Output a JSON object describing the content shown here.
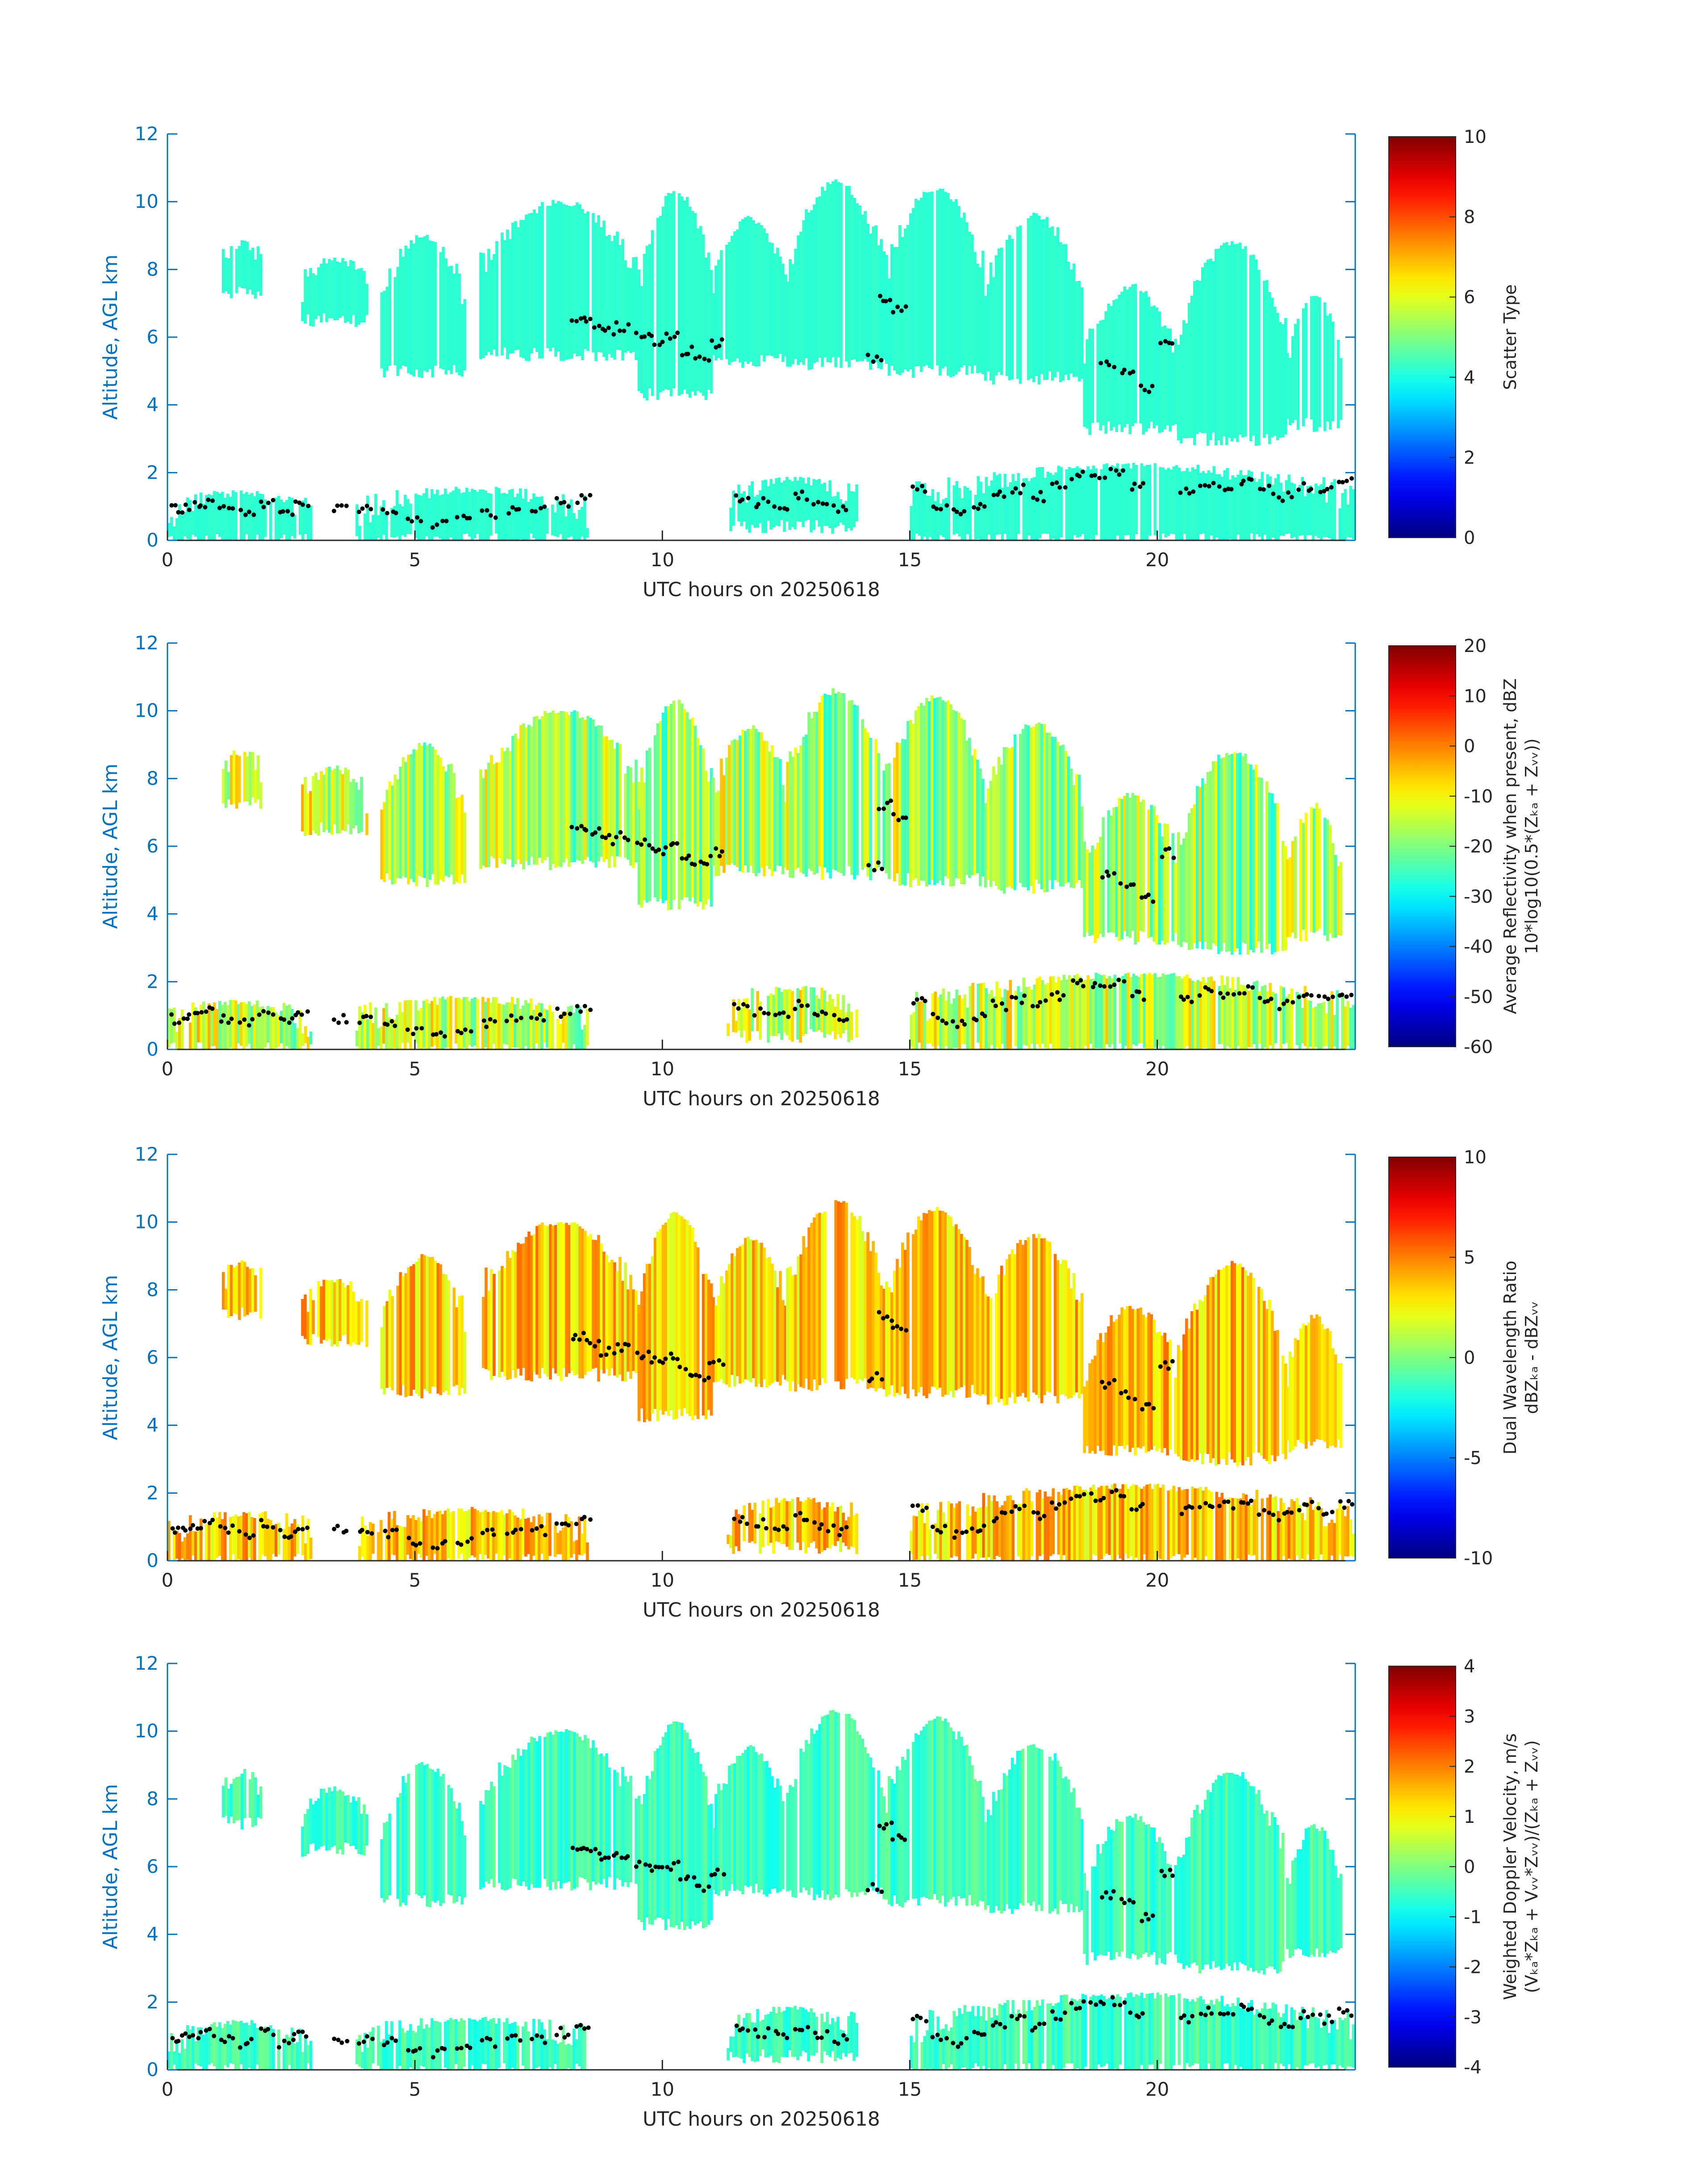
{
  "figure": {
    "colormap": "jet",
    "axis_color": "#0072BD",
    "marker_color": "#000000"
  },
  "chart_data": [
    {
      "type": "heatmap",
      "title": "",
      "xlabel": "UTC hours on 20250618",
      "ylabel": "Altitude, AGL km",
      "xlim": [
        0,
        24
      ],
      "ylim": [
        0,
        12
      ],
      "xticks": [
        0,
        5,
        10,
        15,
        20
      ],
      "yticks": [
        0,
        2,
        4,
        6,
        8,
        10,
        12
      ],
      "colorbar": {
        "label_lines": [
          "Scatter Type"
        ],
        "clim": [
          0,
          10
        ],
        "ticks": [
          0,
          2,
          4,
          6,
          8,
          10
        ],
        "tick_labels": [
          "0",
          "2",
          "4",
          "6",
          "8",
          "10"
        ]
      },
      "field": {
        "dominant_value": 4.2,
        "spread": 0.05
      }
    },
    {
      "type": "heatmap",
      "title": "",
      "xlabel": "UTC hours on 20250618",
      "ylabel": "Altitude, AGL km",
      "xlim": [
        0,
        24
      ],
      "ylim": [
        0,
        12
      ],
      "xticks": [
        0,
        5,
        10,
        15,
        20
      ],
      "yticks": [
        0,
        2,
        4,
        6,
        8,
        10,
        12
      ],
      "colorbar": {
        "label_lines": [
          "Average Reflectivity when present, dBZ",
          "10*log10(0.5*(Zₖₐ + Zᵥᵥ))"
        ],
        "clim": [
          -60,
          20
        ],
        "ticks": [
          -60,
          -50,
          -40,
          -30,
          -20,
          -10,
          0,
          10,
          20
        ],
        "tick_labels": [
          "-60",
          "-50",
          "-40",
          "-30",
          "-20",
          "-10",
          "0",
          "10",
          "20"
        ]
      },
      "field": {
        "dominant_value": -15,
        "spread": 10
      }
    },
    {
      "type": "heatmap",
      "title": "",
      "xlabel": "UTC hours on 20250618",
      "ylabel": "Altitude, AGL km",
      "xlim": [
        0,
        24
      ],
      "ylim": [
        0,
        12
      ],
      "xticks": [
        0,
        5,
        10,
        15,
        20
      ],
      "yticks": [
        0,
        2,
        4,
        6,
        8,
        10,
        12
      ],
      "colorbar": {
        "label_lines": [
          "Dual Wavelength Ratio",
          "dBZₖₐ - dBZᵥᵥ"
        ],
        "clim": [
          -10,
          10
        ],
        "ticks": [
          -10,
          -5,
          0,
          5,
          10
        ],
        "tick_labels": [
          "-10",
          "-5",
          "0",
          "5",
          "10"
        ]
      },
      "field": {
        "dominant_value": 3.5,
        "spread": 2
      }
    },
    {
      "type": "heatmap",
      "title": "",
      "xlabel": "UTC hours on 20250618",
      "ylabel": "Altitude, AGL km",
      "xlim": [
        0,
        24
      ],
      "ylim": [
        0,
        12
      ],
      "xticks": [
        0,
        5,
        10,
        15,
        20
      ],
      "yticks": [
        0,
        2,
        4,
        6,
        8,
        10,
        12
      ],
      "colorbar": {
        "label_lines": [
          "Weighted Doppler Velocity, m/s",
          "(Vₖₐ*Zₖₐ + Vᵥᵥ*Zᵥᵥ)/(Zₖₐ + Zᵥᵥ)"
        ],
        "clim": [
          -4,
          4
        ],
        "ticks": [
          -4,
          -3,
          -2,
          -1,
          0,
          1,
          2,
          3,
          4
        ],
        "tick_labels": [
          "-4",
          "-3",
          "-2",
          "-1",
          "0",
          "1",
          "2",
          "3",
          "4"
        ]
      },
      "field": {
        "dominant_value": -0.5,
        "spread": 0.4
      }
    }
  ],
  "cloud_regions": [
    {
      "t0": 1.1,
      "t1": 1.9,
      "z0": 7.3,
      "z1": 8.8
    },
    {
      "t0": 2.7,
      "t1": 4.0,
      "z0": 6.5,
      "z1": 8.3
    },
    {
      "t0": 4.3,
      "t1": 6.0,
      "z0": 5.0,
      "z1": 9.0
    },
    {
      "t0": 6.3,
      "t1": 9.5,
      "z0": 5.5,
      "z1": 10.0
    },
    {
      "t0": 9.5,
      "t1": 11.0,
      "z0": 4.3,
      "z1": 10.3
    },
    {
      "t0": 11.0,
      "t1": 12.5,
      "z0": 5.3,
      "z1": 9.5
    },
    {
      "t0": 12.5,
      "t1": 14.5,
      "z0": 5.2,
      "z1": 10.6
    },
    {
      "t0": 14.5,
      "t1": 16.5,
      "z0": 5.0,
      "z1": 10.4
    },
    {
      "t0": 16.5,
      "t1": 18.5,
      "z0": 4.8,
      "z1": 9.6
    },
    {
      "t0": 18.5,
      "t1": 20.4,
      "z0": 3.3,
      "z1": 7.5
    },
    {
      "t0": 20.4,
      "t1": 22.6,
      "z0": 3.0,
      "z1": 8.8
    },
    {
      "t0": 22.6,
      "t1": 23.7,
      "z0": 3.4,
      "z1": 7.2
    },
    {
      "t0": 0.0,
      "t1": 2.9,
      "z0": 0.0,
      "z1": 1.4
    },
    {
      "t0": 3.8,
      "t1": 8.5,
      "z0": 0.0,
      "z1": 1.5
    },
    {
      "t0": 11.3,
      "t1": 13.9,
      "z0": 0.4,
      "z1": 1.8
    },
    {
      "t0": 15.0,
      "t1": 24.0,
      "z0": 0.0,
      "z1": 2.2
    }
  ],
  "marker_points": [
    [
      0.2,
      0.9
    ],
    [
      0.5,
      1.0
    ],
    [
      0.8,
      1.1
    ],
    [
      1.2,
      0.9
    ],
    [
      1.6,
      0.8
    ],
    [
      2.0,
      1.1
    ],
    [
      2.4,
      0.8
    ],
    [
      2.7,
      1.0
    ],
    [
      3.5,
      0.9
    ],
    [
      4.0,
      0.9
    ],
    [
      4.5,
      0.8
    ],
    [
      5.0,
      0.6
    ],
    [
      5.5,
      0.5
    ],
    [
      6.0,
      0.6
    ],
    [
      6.5,
      0.8
    ],
    [
      7.0,
      0.9
    ],
    [
      7.5,
      0.9
    ],
    [
      8.0,
      1.1
    ],
    [
      8.4,
      1.2
    ],
    [
      8.3,
      6.6
    ],
    [
      8.6,
      6.4
    ],
    [
      8.9,
      6.2
    ],
    [
      9.2,
      6.3
    ],
    [
      9.6,
      6.1
    ],
    [
      9.9,
      5.9
    ],
    [
      10.2,
      6.0
    ],
    [
      10.5,
      5.6
    ],
    [
      10.8,
      5.4
    ],
    [
      11.1,
      5.8
    ],
    [
      11.6,
      1.2
    ],
    [
      12.0,
      1.1
    ],
    [
      12.4,
      1.0
    ],
    [
      12.8,
      1.3
    ],
    [
      13.2,
      1.0
    ],
    [
      13.6,
      0.9
    ],
    [
      14.3,
      5.4
    ],
    [
      14.5,
      7.2
    ],
    [
      14.8,
      6.8
    ],
    [
      15.2,
      1.5
    ],
    [
      15.6,
      0.9
    ],
    [
      16.0,
      0.8
    ],
    [
      16.4,
      1.0
    ],
    [
      16.8,
      1.3
    ],
    [
      17.2,
      1.5
    ],
    [
      17.6,
      1.3
    ],
    [
      18.0,
      1.6
    ],
    [
      18.4,
      1.9
    ],
    [
      18.8,
      1.9
    ],
    [
      19.2,
      2.0
    ],
    [
      19.6,
      1.6
    ],
    [
      19.0,
      5.2
    ],
    [
      19.4,
      4.9
    ],
    [
      19.8,
      4.5
    ],
    [
      20.2,
      5.8
    ],
    [
      20.6,
      1.5
    ],
    [
      21.0,
      1.7
    ],
    [
      21.4,
      1.6
    ],
    [
      21.8,
      1.8
    ],
    [
      22.2,
      1.5
    ],
    [
      22.6,
      1.3
    ],
    [
      23.0,
      1.6
    ],
    [
      23.4,
      1.5
    ],
    [
      23.8,
      1.7
    ]
  ]
}
